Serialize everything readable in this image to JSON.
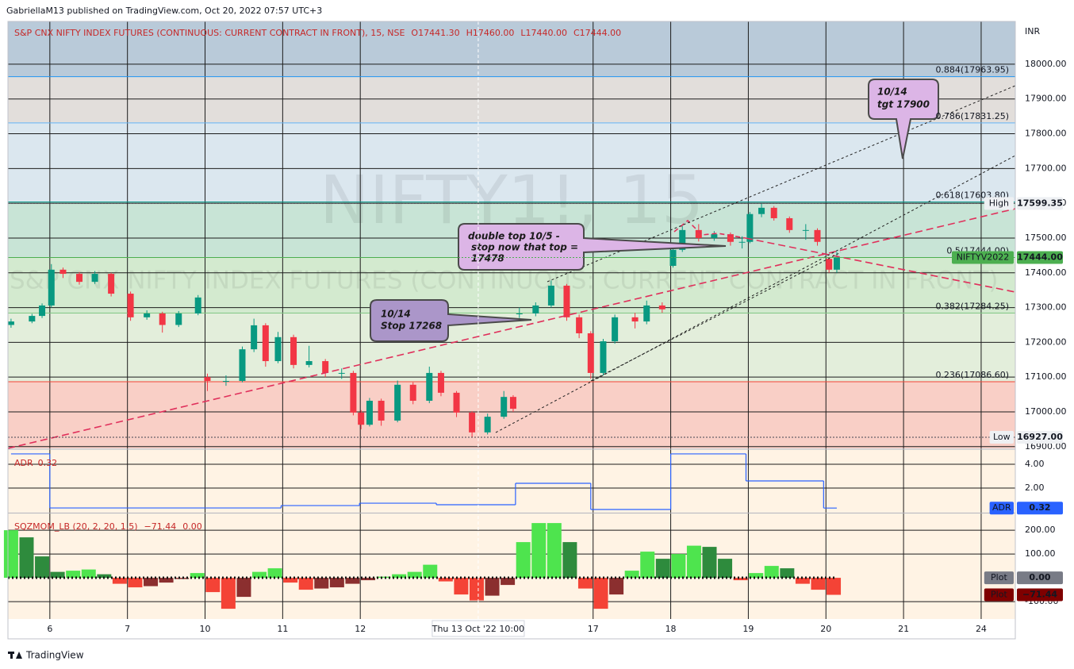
{
  "header": {
    "publisher": "GabriellaM13 published on TradingView.com, Oct 20, 2022 07:57 UTC+3"
  },
  "footer": {
    "brand": "TradingView"
  },
  "annotations": [
    {
      "lines": [
        "double top 10/5 -",
        "stop now that top =",
        "17478"
      ]
    },
    {
      "lines": [
        "10/14",
        "Stop 17268"
      ]
    },
    {
      "lines": [
        "10/14",
        "tgt 17900"
      ]
    }
  ],
  "chart_data": [
    {
      "type": "candlestick",
      "title": "S&P CNX NIFTY INDEX FUTURES (CONTINUOUS: CURRENT CONTRACT IN FRONT), 15, NSE",
      "ohlc_labels": [
        "O17441.30",
        "H17460.00",
        "L17440.00",
        "C17444.00"
      ],
      "watermark": "NIFTY1!, 15",
      "watermark_subtitle": "S&P CNX NIFTY INDEX FUTURES (CONTINUOUS: CURRENT CONTRACT IN FRONT)",
      "currency": "INR",
      "up_color": "#089981",
      "down_color": "#f23645",
      "x": [
        -0.5,
        -0.23,
        -0.1,
        0.02,
        0.17,
        0.38,
        0.58,
        0.79,
        1.04,
        1.25,
        1.45,
        1.66,
        1.91,
        2.03,
        2.27,
        2.48,
        2.63,
        2.78,
        2.94,
        3.14,
        3.34,
        3.55,
        3.76,
        3.91,
        4.01,
        4.12,
        4.27,
        4.48,
        4.68,
        4.89,
        5.04,
        5.24,
        5.44,
        5.64,
        5.85,
        5.97,
        6.05,
        6.26,
        6.46,
        6.66,
        6.82,
        6.97,
        7.13,
        7.28,
        7.54,
        7.69,
        7.89,
        8.03,
        8.15,
        8.36,
        8.56,
        8.77,
        8.92,
        9.02,
        9.17,
        9.33,
        9.53,
        9.74,
        9.89,
        10.04,
        10.14
      ],
      "open": [
        17250,
        17260,
        17276,
        17306,
        17409,
        17397,
        17374,
        17397,
        17340,
        17272,
        17283,
        17250,
        17283,
        17100,
        17089,
        17089,
        17180,
        17249,
        17146,
        17215,
        17135,
        17146,
        17112,
        17112,
        16998,
        16963,
        17032,
        16975,
        17078,
        17032,
        17112,
        17055,
        16998,
        16941,
        16986,
        17043,
        17283,
        17283,
        17306,
        17363,
        17272,
        17226,
        17112,
        17203,
        17272,
        17260,
        17306,
        17420,
        17466,
        17523,
        17500,
        17511,
        17489,
        17489,
        17569,
        17587,
        17557,
        17523,
        17523,
        17440,
        17409
      ],
      "high": [
        17268,
        17282,
        17312,
        17425,
        17415,
        17402,
        17405,
        17400,
        17346,
        17292,
        17288,
        17290,
        17336,
        17110,
        17105,
        17188,
        17268,
        17255,
        17230,
        17222,
        17190,
        17152,
        17125,
        17118,
        17005,
        17040,
        17038,
        17090,
        17085,
        17130,
        17118,
        17060,
        17002,
        16995,
        17060,
        17048,
        17300,
        17315,
        17378,
        17368,
        17280,
        17232,
        17210,
        17280,
        17285,
        17320,
        17315,
        17475,
        17535,
        17540,
        17520,
        17516,
        17505,
        17575,
        17599.35,
        17592,
        17562,
        17540,
        17528,
        17445,
        17460
      ],
      "low": [
        17242,
        17255,
        17270,
        17300,
        17385,
        17366,
        17368,
        17332,
        17262,
        17265,
        17228,
        17244,
        17278,
        17060,
        17075,
        17085,
        17172,
        17130,
        17140,
        17125,
        17128,
        17100,
        17095,
        16990,
        16950,
        16958,
        16960,
        16970,
        17022,
        17025,
        17045,
        16985,
        16927,
        16935,
        16980,
        17000,
        17270,
        17275,
        17300,
        17262,
        17212,
        17095,
        17105,
        17196,
        17240,
        17252,
        17285,
        17415,
        17460,
        17490,
        17492,
        17478,
        17470,
        17485,
        17560,
        17550,
        17515,
        17495,
        17478,
        17400,
        17400
      ],
      "close": [
        17260,
        17276,
        17306,
        17409,
        17397,
        17374,
        17397,
        17340,
        17272,
        17283,
        17250,
        17283,
        17329,
        17089,
        17089,
        17180,
        17249,
        17146,
        17215,
        17135,
        17146,
        17112,
        17112,
        16998,
        16963,
        17032,
        16975,
        17078,
        17032,
        17112,
        17055,
        16998,
        16941,
        16986,
        17043,
        17009,
        17283,
        17306,
        17363,
        17272,
        17226,
        17112,
        17203,
        17272,
        17260,
        17306,
        17295,
        17466,
        17523,
        17500,
        17511,
        17489,
        17489,
        17569,
        17587,
        17557,
        17523,
        17523,
        17489,
        17409,
        17444
      ],
      "xlim": [
        -0.54,
        12.44
      ],
      "xticks": [
        {
          "value": 0,
          "label": "6"
        },
        {
          "value": 1,
          "label": "7"
        },
        {
          "value": 2,
          "label": "10"
        },
        {
          "value": 3,
          "label": "11"
        },
        {
          "value": 4,
          "label": "12"
        },
        {
          "value": 7,
          "label": "17"
        },
        {
          "value": 8,
          "label": "18"
        },
        {
          "value": 9,
          "label": "19"
        },
        {
          "value": 10,
          "label": "20"
        },
        {
          "value": 11,
          "label": "21"
        },
        {
          "value": 12,
          "label": "24"
        }
      ],
      "crosshair": {
        "x": 5.52,
        "label": "Thu 13 Oct '22  10:00"
      },
      "ylim": [
        16895,
        18123
      ],
      "yticks": [
        {
          "value": 16900,
          "label": "16900.00"
        },
        {
          "value": 17000,
          "label": "17000.00"
        },
        {
          "value": 17100,
          "label": "17100.00"
        },
        {
          "value": 17200,
          "label": "17200.00"
        },
        {
          "value": 17300,
          "label": "17300.00"
        },
        {
          "value": 17400,
          "label": "17400.00"
        },
        {
          "value": 17500,
          "label": "17500.00"
        },
        {
          "value": 17600,
          "label": "17600.00"
        },
        {
          "value": 17700,
          "label": "17700.00"
        },
        {
          "value": 17800,
          "label": "17800.00"
        },
        {
          "value": 17900,
          "label": "17900.00"
        },
        {
          "value": 18000,
          "label": "18000.00"
        }
      ],
      "grid": true,
      "fib": {
        "levels": [
          {
            "label": "0.884(17963.95)",
            "value": 17963.95,
            "color": "#2196f3"
          },
          {
            "label": "0.786(17831.25)",
            "value": 17831.25,
            "color": "#64b5f6"
          },
          {
            "label": "0.618(17603.80)",
            "value": 17603.8,
            "color": "#009688"
          },
          {
            "label": "0.5(17444.00)",
            "value": 17444,
            "color": "#4caf50"
          },
          {
            "label": "0.382(17284.25)",
            "value": 17284.25,
            "color": "#81c784"
          },
          {
            "label": "0.236(17086.60)",
            "value": 17086.6,
            "color": "#f44336"
          }
        ],
        "zone_colors": [
          "#b9cad9",
          "#e2dedb",
          "#dbe7ef",
          "#c8e4d6",
          "#d3eacf",
          "#e3eedb",
          "#f9cfc6"
        ]
      },
      "markers": [
        {
          "name": "High",
          "value": 17599.35,
          "value_label": "17599.35",
          "color": "#eef0f3",
          "text_color": "#131722",
          "line_color": "#434651"
        },
        {
          "name": "NIFTYV2022",
          "value": 17444,
          "value_label": "17444.00",
          "color": "#4caf50",
          "text_color": "#ffffff",
          "line_color": "#4caf50"
        },
        {
          "name": "Low",
          "value": 16927,
          "value_label": "16927.00",
          "color": "#eef0f3",
          "text_color": "#131722",
          "line_color": "#434651"
        }
      ]
    },
    {
      "type": "step",
      "name": "ADR",
      "color": "#2962ff",
      "x": [
        -0.5,
        0.0,
        2.98,
        3.99,
        4.98,
        6.0,
        6.97,
        8.0,
        8.97,
        9.97
      ],
      "values": [
        4.87,
        0.33,
        0.53,
        0.73,
        0.6,
        2.4,
        0.2,
        4.87,
        2.6,
        0.32
      ],
      "ylim": [
        0,
        5.2
      ],
      "yticks": [
        {
          "value": 2,
          "label": "2.00"
        },
        {
          "value": 4,
          "label": "4.00"
        }
      ],
      "grid": true,
      "markers": [
        {
          "name": "ADR",
          "value": 0.32,
          "value_label": "0.32",
          "color": "#2962ff",
          "text_color": "#ffffff"
        }
      ]
    },
    {
      "type": "histogram",
      "name": "SQZMOM_LB (20, 2, 20, 1.5)",
      "colors": {
        "rising_up": "#4ee44e",
        "falling_up": "#2e8b3d",
        "falling_down": "#f44336",
        "rising_down": "#8b2f2f"
      },
      "x": [
        -0.5,
        -0.3,
        -0.1,
        0.1,
        0.3,
        0.5,
        0.7,
        0.9,
        1.1,
        1.3,
        1.5,
        1.7,
        1.9,
        2.1,
        2.3,
        2.5,
        2.7,
        2.9,
        3.1,
        3.3,
        3.5,
        3.7,
        3.9,
        4.1,
        4.3,
        4.5,
        4.7,
        4.9,
        5.1,
        5.3,
        5.5,
        5.7,
        5.9,
        6.1,
        6.3,
        6.5,
        6.7,
        6.9,
        7.1,
        7.3,
        7.5,
        7.7,
        7.9,
        8.1,
        8.3,
        8.5,
        8.7,
        8.9,
        9.1,
        9.3,
        9.5,
        9.7,
        9.9,
        10.1
      ],
      "values": [
        200,
        170,
        90,
        25,
        30,
        35,
        15,
        -25,
        -40,
        -35,
        -20,
        -5,
        20,
        -60,
        -130,
        -80,
        25,
        40,
        -20,
        -50,
        -45,
        -40,
        -25,
        -10,
        5,
        15,
        25,
        55,
        -15,
        -70,
        -95,
        -75,
        -30,
        150,
        230,
        230,
        150,
        -45,
        -130,
        -70,
        30,
        110,
        80,
        100,
        135,
        130,
        80,
        -10,
        20,
        50,
        40,
        -25,
        -50,
        -71.44
      ],
      "ylim": [
        -173,
        267
      ],
      "yticks": [
        {
          "value": -100,
          "label": "-100.00"
        },
        {
          "value": 100,
          "label": "100.00"
        },
        {
          "value": 200,
          "label": "200.00"
        }
      ],
      "grid": true,
      "markers": [
        {
          "name": "Plot",
          "value": 0,
          "value_label": "0.00",
          "color": "#787b86",
          "text_color": "#ffffff"
        },
        {
          "name": "Plot",
          "value": -71.44,
          "value_label": "−71.44",
          "color": "#7f0000",
          "text_color": "#ffffff"
        }
      ]
    }
  ]
}
